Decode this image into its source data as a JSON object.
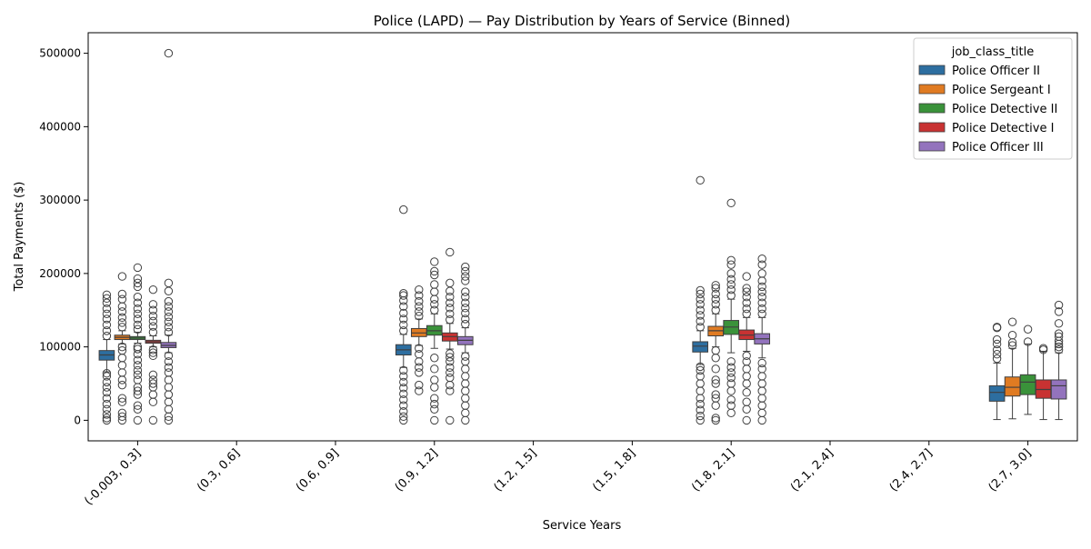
{
  "chart_data": {
    "type": "box",
    "title": "Police (LAPD) — Pay Distribution by Years of Service (Binned)",
    "xlabel": "Service Years",
    "ylabel": "Total Payments ($)",
    "ylim": [
      -28000,
      528000
    ],
    "yticks": [
      0,
      100000,
      200000,
      300000,
      400000,
      500000
    ],
    "categories": [
      "(-0.003, 0.3]",
      "(0.3, 0.6]",
      "(0.6, 0.9]",
      "(0.9, 1.2]",
      "(1.2, 1.5]",
      "(1.5, 1.8]",
      "(1.8, 2.1]",
      "(2.1, 2.4]",
      "(2.4, 2.7]",
      "(2.7, 3.0]"
    ],
    "legend": {
      "title": "job_class_title",
      "placement": "top-right"
    },
    "grid": false,
    "series": [
      {
        "name": "Police Officer II",
        "color": "#2d6ea0",
        "boxes": [
          {
            "category": "(-0.003, 0.3]",
            "q1": 82000,
            "median": 89000,
            "q3": 95000,
            "whisker_low": 66000,
            "whisker_high": 110000,
            "outliers_low": [
              0,
              3000,
              8000,
              15000,
              22000,
              30000,
              38000,
              45000,
              52000,
              60000,
              64000
            ],
            "outliers_high": [
              115000,
              122000,
              130000,
              138000,
              145000,
              152000,
              160000,
              166000,
              171000
            ]
          },
          {
            "category": "(0.9, 1.2]",
            "q1": 89000,
            "median": 96000,
            "q3": 103000,
            "whisker_low": 72000,
            "whisker_high": 117000,
            "outliers_low": [
              0,
              5000,
              12000,
              20000,
              28000,
              36000,
              44000,
              52000,
              60000,
              68000
            ],
            "outliers_high": [
              122000,
              130000,
              138000,
              146000,
              155000,
              163000,
              170000,
              173000,
              287000
            ]
          },
          {
            "category": "(1.8, 2.1]",
            "q1": 93000,
            "median": 101000,
            "q3": 107000,
            "whisker_low": 76000,
            "whisker_high": 122000,
            "outliers_low": [
              0,
              6000,
              14000,
              22000,
              30000,
              40000,
              50000,
              60000,
              68000,
              73000
            ],
            "outliers_high": [
              127000,
              135000,
              143000,
              150000,
              158000,
              165000,
              172000,
              177000,
              327000
            ]
          },
          {
            "category": "(2.7, 3.0]",
            "q1": 26000,
            "median": 38000,
            "q3": 47000,
            "whisker_low": 1000,
            "whisker_high": 78000,
            "outliers_low": [],
            "outliers_high": [
              84000,
              90000,
              96000,
              104000,
              110000,
              126000,
              127000
            ]
          }
        ]
      },
      {
        "name": "Police Sergeant I",
        "color": "#e07b22",
        "boxes": [
          {
            "category": "(-0.003, 0.3]",
            "q1": 110000,
            "median": 113000,
            "q3": 116000,
            "whisker_low": 104000,
            "whisker_high": 122000,
            "outliers_low": [
              0,
              5000,
              10000,
              25000,
              30000,
              48000,
              55000,
              65000,
              75000,
              85000,
              95000,
              100000
            ],
            "outliers_high": [
              127000,
              133000,
              140000,
              148000,
              155000,
              165000,
              172000,
              196000
            ]
          },
          {
            "category": "(0.9, 1.2]",
            "q1": 114000,
            "median": 119000,
            "q3": 125000,
            "whisker_low": 102000,
            "whisker_high": 138000,
            "outliers_low": [
              40000,
              48000,
              65000,
              72000,
              80000,
              90000,
              98000
            ],
            "outliers_high": [
              142000,
              148000,
              155000,
              162000,
              170000,
              178000
            ]
          },
          {
            "category": "(1.8, 2.1]",
            "q1": 115000,
            "median": 122000,
            "q3": 128000,
            "whisker_low": 100000,
            "whisker_high": 145000,
            "outliers_low": [
              0,
              3000,
              20000,
              30000,
              35000,
              50000,
              55000,
              70000,
              85000,
              95000
            ],
            "outliers_high": [
              150000,
              158000,
              165000,
              172000,
              180000,
              184000
            ]
          },
          {
            "category": "(2.7, 3.0]",
            "q1": 33000,
            "median": 45000,
            "q3": 59000,
            "whisker_low": 2000,
            "whisker_high": 98000,
            "outliers_low": [],
            "outliers_high": [
              102000,
              106000,
              116000,
              134000
            ]
          }
        ]
      },
      {
        "name": "Police Detective II",
        "color": "#3a923a",
        "boxes": [
          {
            "category": "(-0.003, 0.3]",
            "q1": 110000,
            "median": 112000,
            "q3": 114000,
            "whisker_low": 105000,
            "whisker_high": 120000,
            "outliers_low": [
              0,
              15000,
              20000,
              35000,
              40000,
              45000,
              55000,
              62000,
              68000,
              75000,
              82000,
              90000,
              97000,
              100000
            ],
            "outliers_high": [
              124000,
              130000,
              138000,
              145000,
              152000,
              160000,
              168000,
              182000,
              187000,
              193000,
              208000
            ]
          },
          {
            "category": "(0.9, 1.2]",
            "q1": 116000,
            "median": 122000,
            "q3": 129000,
            "whisker_low": 98000,
            "whisker_high": 145000,
            "outliers_low": [
              0,
              15000,
              22000,
              30000,
              45000,
              55000,
              70000,
              85000
            ],
            "outliers_high": [
              150000,
              158000,
              165000,
              175000,
              185000,
              198000,
              203000,
              216000
            ]
          },
          {
            "category": "(1.8, 2.1]",
            "q1": 117000,
            "median": 127000,
            "q3": 136000,
            "whisker_low": 92000,
            "whisker_high": 165000,
            "outliers_low": [
              10000,
              20000,
              28000,
              40000,
              50000,
              58000,
              65000,
              72000,
              80000
            ],
            "outliers_high": [
              170000,
              178000,
              185000,
              192000,
              200000,
              212000,
              218000,
              296000
            ]
          },
          {
            "category": "(2.7, 3.0]",
            "q1": 35000,
            "median": 52000,
            "q3": 62000,
            "whisker_low": 8000,
            "whisker_high": 104000,
            "outliers_low": [],
            "outliers_high": [
              107000,
              124000
            ]
          }
        ]
      },
      {
        "name": "Police Detective I",
        "color": "#c83232",
        "boxes": [
          {
            "category": "(-0.003, 0.3]",
            "q1": 105000,
            "median": 107000,
            "q3": 109000,
            "whisker_low": 100000,
            "whisker_high": 115000,
            "outliers_low": [
              0,
              25000,
              35000,
              45000,
              50000,
              55000,
              62000,
              88000,
              92000,
              96000
            ],
            "outliers_high": [
              120000,
              128000,
              135000,
              142000,
              150000,
              158000,
              178000
            ]
          },
          {
            "category": "(0.9, 1.2]",
            "q1": 108000,
            "median": 114000,
            "q3": 119000,
            "whisker_low": 97000,
            "whisker_high": 132000,
            "outliers_low": [
              0,
              40000,
              48000,
              58000,
              65000,
              72000,
              80000,
              86000,
              91000
            ],
            "outliers_high": [
              137000,
              145000,
              153000,
              160000,
              168000,
              176000,
              187000,
              229000
            ]
          },
          {
            "category": "(1.8, 2.1]",
            "q1": 110000,
            "median": 116000,
            "q3": 123000,
            "whisker_low": 94000,
            "whisker_high": 140000,
            "outliers_low": [
              0,
              15000,
              25000,
              38000,
              50000,
              60000,
              70000,
              80000,
              88000
            ],
            "outliers_high": [
              145000,
              152000,
              160000,
              168000,
              175000,
              180000,
              196000
            ]
          },
          {
            "category": "(2.7, 3.0]",
            "q1": 30000,
            "median": 42000,
            "q3": 55000,
            "whisker_low": 1000,
            "whisker_high": 94000,
            "outliers_low": [],
            "outliers_high": [
              96000,
              98000
            ]
          }
        ]
      },
      {
        "name": "Police Officer III",
        "color": "#9373bd",
        "boxes": [
          {
            "category": "(-0.003, 0.3]",
            "q1": 99000,
            "median": 102000,
            "q3": 106000,
            "whisker_low": 92000,
            "whisker_high": 116000,
            "outliers_low": [
              0,
              5000,
              15000,
              25000,
              35000,
              45000,
              55000,
              65000,
              72000,
              80000,
              88000
            ],
            "outliers_high": [
              120000,
              127000,
              134000,
              141000,
              148000,
              155000,
              162000,
              176000,
              187000,
              500000
            ]
          },
          {
            "category": "(0.9, 1.2]",
            "q1": 103000,
            "median": 109000,
            "q3": 114000,
            "whisker_low": 92000,
            "whisker_high": 126000,
            "outliers_low": [
              0,
              10000,
              20000,
              30000,
              40000,
              50000,
              60000,
              70000,
              80000,
              87000
            ],
            "outliers_high": [
              131000,
              138000,
              146000,
              153000,
              160000,
              168000,
              175000,
              190000,
              196000,
              203000,
              209000
            ]
          },
          {
            "category": "(1.8, 2.1]",
            "q1": 104000,
            "median": 111000,
            "q3": 118000,
            "whisker_low": 85000,
            "whisker_high": 140000,
            "outliers_low": [
              0,
              10000,
              20000,
              30000,
              40000,
              50000,
              60000,
              70000,
              78000
            ],
            "outliers_high": [
              145000,
              152000,
              160000,
              168000,
              175000,
              182000,
              190000,
              200000,
              212000,
              220000
            ]
          },
          {
            "category": "(2.7, 3.0]",
            "q1": 29000,
            "median": 47000,
            "q3": 55000,
            "whisker_low": 1000,
            "whisker_high": 92000,
            "outliers_low": [],
            "outliers_high": [
              96000,
              100000,
              104000,
              108000,
              114000,
              118000,
              132000,
              148000,
              157000
            ]
          }
        ]
      }
    ]
  }
}
